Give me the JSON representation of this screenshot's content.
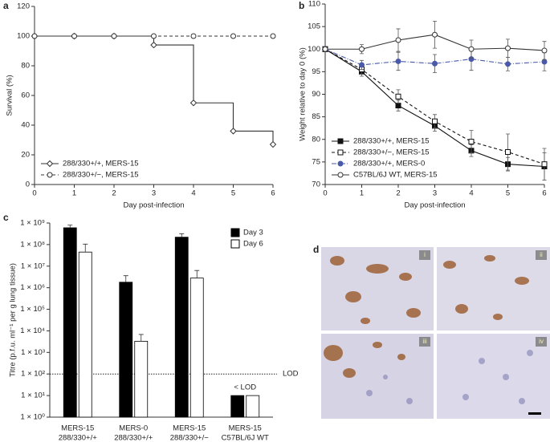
{
  "panel_labels": [
    "a",
    "b",
    "c",
    "d"
  ],
  "chart_data": [
    {
      "type": "line",
      "step": true,
      "xlabel": "Day post-infection",
      "ylabel": "Survival (%)",
      "x": [
        0,
        1,
        2,
        3,
        4,
        5,
        6
      ],
      "xlim": [
        0,
        6
      ],
      "xticks": [
        0,
        1,
        2,
        3,
        4,
        5,
        6
      ],
      "ylim": [
        0,
        120
      ],
      "yticks": [
        0,
        20,
        40,
        60,
        80,
        100,
        120
      ],
      "legend": "lower left",
      "series": [
        {
          "name": "288/330+/+, MERS-15",
          "color": "#333333",
          "dash": "solid",
          "marker": "diamond-open",
          "values": [
            100,
            100,
            100,
            94,
            55,
            36,
            27
          ]
        },
        {
          "name": "288/330+/−, MERS-15",
          "color": "#333333",
          "dash": "dashed",
          "marker": "circle-open",
          "values": [
            100,
            100,
            100,
            100,
            100,
            100,
            100
          ]
        }
      ]
    },
    {
      "type": "line",
      "xlabel": "Day post-infection",
      "ylabel": "Weight relative to day 0 (%)",
      "x": [
        0,
        1,
        2,
        3,
        4,
        5,
        6
      ],
      "xlim": [
        0,
        6
      ],
      "xticks": [
        0,
        1,
        2,
        3,
        4,
        5,
        6
      ],
      "ylim": [
        70,
        110
      ],
      "yticks": [
        70,
        75,
        80,
        85,
        90,
        95,
        100,
        105,
        110
      ],
      "legend": "lower left",
      "series": [
        {
          "name": "288/330+/+, MERS-15",
          "color": "#111111",
          "dash": "solid",
          "marker": "square-filled",
          "values": [
            100,
            95,
            87.5,
            83,
            77.5,
            74.5,
            74
          ],
          "errors": [
            0,
            1,
            1.2,
            1.2,
            1.3,
            1.5,
            3
          ]
        },
        {
          "name": "288/330+/−, MERS-15",
          "color": "#111111",
          "dash": "dashed",
          "marker": "square-open",
          "values": [
            100,
            95.5,
            89.5,
            84,
            79.5,
            77.2,
            74.5
          ],
          "errors": [
            0,
            1,
            1.5,
            1.5,
            2.5,
            4,
            3.5
          ]
        },
        {
          "name": "288/330+/+, MERS-0",
          "color": "#4a5aa8",
          "dash": "dashdot",
          "marker": "circle-filled",
          "values": [
            100,
            96.5,
            97.3,
            96.8,
            97.8,
            96.7,
            97.2
          ],
          "errors": [
            0,
            1,
            2,
            2,
            2.5,
            1.5,
            2
          ]
        },
        {
          "name": "C57BL/6J WT, MERS-15",
          "color": "#333333",
          "dash": "solid",
          "marker": "circle-open",
          "values": [
            100,
            100,
            102,
            103.2,
            100,
            100.2,
            99.7
          ],
          "errors": [
            0,
            1,
            2.5,
            3,
            2,
            2,
            2
          ]
        }
      ]
    },
    {
      "type": "bar",
      "log_scale": true,
      "ylabel": "Titre (p.f.u. ml⁻¹ per g lung tissue)",
      "categories": [
        [
          "MERS-15",
          "288/330+/+"
        ],
        [
          "MERS-0",
          "288/330+/+"
        ],
        [
          "MERS-15",
          "288/330+/−"
        ],
        [
          "MERS-15",
          "C57BL/6J WT"
        ]
      ],
      "ylim": [
        1,
        1000000000.0
      ],
      "yticks": [
        {
          "value": 1,
          "label": "1 × 10⁰"
        },
        {
          "value": 10,
          "label": "1 × 10¹"
        },
        {
          "value": 100,
          "label": "1 × 10²"
        },
        {
          "value": 1000,
          "label": "1 × 10³"
        },
        {
          "value": 10000,
          "label": "1 × 10⁴"
        },
        {
          "value": 100000,
          "label": "1 × 10⁵"
        },
        {
          "value": 1000000,
          "label": "1 × 10⁶"
        },
        {
          "value": 10000000,
          "label": "1 × 10⁷"
        },
        {
          "value": 100000000,
          "label": "1 × 10⁸"
        },
        {
          "value": 1000000000,
          "label": "1 × 10⁹"
        }
      ],
      "legend": "upper right",
      "reference_line": {
        "value": 100,
        "label": "LOD"
      },
      "annotation": "< LOD",
      "series": [
        {
          "name": "Day 3",
          "color": "#000000",
          "values": [
            600000000,
            1800000,
            220000000,
            10
          ],
          "errors": [
            200000000,
            1800000,
            100000000,
            0
          ]
        },
        {
          "name": "Day 6",
          "color": "#ffffff",
          "values": [
            45000000,
            3300,
            2800000,
            10
          ],
          "errors": [
            60000000,
            3500,
            3500000,
            0
          ]
        }
      ]
    }
  ],
  "image": {
    "sublabels": [
      "i",
      "ii",
      "iii",
      "iv"
    ]
  }
}
